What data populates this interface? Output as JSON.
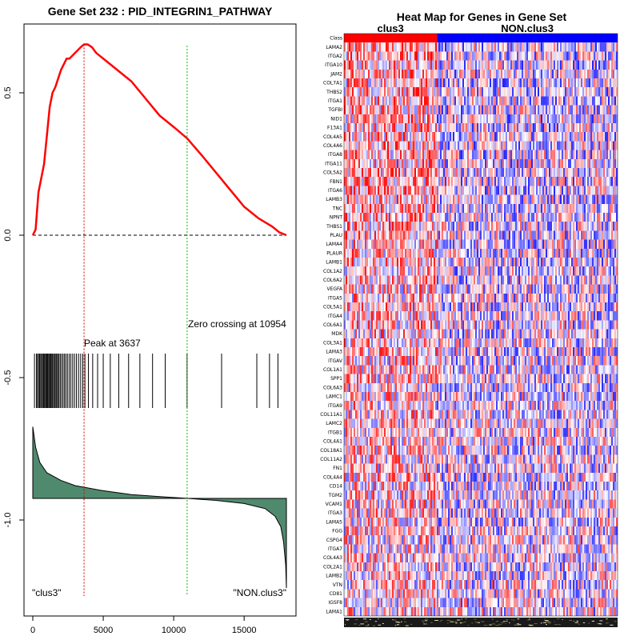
{
  "chart_data": [
    {
      "type": "line",
      "title": "Gene Set  232 : PID_INTEGRIN1_PATHWAY",
      "xlim": [
        0,
        18000
      ],
      "ylim": [
        -1.35,
        0.75
      ],
      "x_ticks": [
        0,
        5000,
        10000,
        15000
      ],
      "x_tick_labels": [
        "0",
        "5000",
        "10000",
        "15000"
      ],
      "y_ticks": [
        0.5,
        0.0,
        -0.5,
        -1.0
      ],
      "y_tick_labels": [
        "0.5",
        "0.0",
        "-0.5",
        "-1.0"
      ],
      "running_enrichment_score": {
        "x": [
          0,
          200,
          400,
          600,
          800,
          1000,
          1200,
          1400,
          1600,
          1800,
          2000,
          2200,
          2400,
          2600,
          2800,
          3000,
          3200,
          3400,
          3637,
          3900,
          4200,
          4500,
          5000,
          6000,
          7000,
          8000,
          9000,
          10000,
          10954,
          12000,
          13000,
          14000,
          15000,
          16000,
          17000,
          17500,
          18000
        ],
        "y": [
          0.0,
          0.02,
          0.15,
          0.2,
          0.25,
          0.35,
          0.45,
          0.5,
          0.52,
          0.55,
          0.58,
          0.6,
          0.62,
          0.62,
          0.63,
          0.64,
          0.65,
          0.66,
          0.67,
          0.67,
          0.66,
          0.64,
          0.62,
          0.58,
          0.54,
          0.48,
          0.42,
          0.38,
          0.34,
          0.28,
          0.22,
          0.16,
          0.1,
          0.06,
          0.03,
          0.01,
          0.0
        ],
        "color": "#ff0000"
      },
      "zero_line": 0.0,
      "peak": {
        "x": 3637,
        "label": "Peak at 3637",
        "color": "#cc0000"
      },
      "zero_crossing": {
        "x": 10954,
        "label": "Zero crossing at 10954",
        "color": "#00bb00"
      },
      "hit_positions": [
        120,
        260,
        330,
        410,
        480,
        560,
        620,
        700,
        760,
        830,
        900,
        960,
        1020,
        1080,
        1150,
        1210,
        1280,
        1350,
        1410,
        1480,
        1560,
        1640,
        1700,
        1780,
        1860,
        1950,
        2050,
        2150,
        2250,
        2350,
        2460,
        2580,
        2700,
        2830,
        2960,
        3100,
        3250,
        3400,
        3550,
        3700,
        3950,
        4250,
        4600,
        5000,
        5500,
        6100,
        6800,
        7600,
        8500,
        9400,
        10950,
        13400,
        15900,
        16800,
        17400
      ],
      "ranked_metric": {
        "x": [
          0,
          200,
          500,
          1000,
          2000,
          3000,
          5000,
          7000,
          9000,
          11000,
          13000,
          15000,
          16500,
          17200,
          17600,
          17800,
          17950,
          18000
        ],
        "y": [
          0.28,
          0.2,
          0.14,
          0.1,
          0.07,
          0.05,
          0.03,
          0.015,
          0.007,
          0.0,
          -0.008,
          -0.02,
          -0.04,
          -0.07,
          -0.11,
          -0.17,
          -0.26,
          -0.35
        ],
        "baseline": 0.0,
        "fill": "#4f8a6e"
      },
      "left_label": "\"clus3\"",
      "right_label": "\"NON.clus3\""
    },
    {
      "type": "heatmap",
      "title": "Heat Map for Genes in Gene Set",
      "class_row_label": "Class",
      "classes": [
        {
          "name": "clus3",
          "color": "#ff0000",
          "fraction": 0.34
        },
        {
          "name": "NON.clus3",
          "color": "#0000ff",
          "fraction": 0.66
        }
      ],
      "genes": [
        "LAMA2",
        "ITGA2",
        "ITGA10",
        "JAM2",
        "COL7A1",
        "THBS2",
        "ITGA1",
        "TGFBI",
        "NID1",
        "F13A1",
        "COL4A5",
        "COL4A6",
        "ITGA8",
        "ITGA11",
        "COL5A2",
        "FBN1",
        "ITGA6",
        "LAMB3",
        "TNC",
        "NPNT",
        "THBS1",
        "PLAU",
        "LAMA4",
        "PLAUR",
        "LAMB1",
        "COL1A2",
        "COL6A2",
        "VEGFA",
        "ITGA5",
        "COL5A1",
        "ITGA4",
        "COL6A1",
        "MDK",
        "COL3A1",
        "LAMA3",
        "ITGAV",
        "COL1A1",
        "SPP1",
        "COL6A3",
        "LAMC1",
        "ITGA9",
        "COL11A1",
        "LAMC2",
        "ITGB1",
        "COL4A1",
        "COL18A1",
        "COL11A2",
        "FN1",
        "COL4A4",
        "CD14",
        "TGM2",
        "VCAM1",
        "ITGA3",
        "LAMA5",
        "FGG",
        "CSPG4",
        "ITGA7",
        "COL4A3",
        "COL2A1",
        "LAMB2",
        "VTN",
        "CD81",
        "IGSF8",
        "LAMA1"
      ],
      "scale": {
        "low": "#0000ff",
        "mid": "#ffffff",
        "high": "#ff0000"
      }
    }
  ]
}
